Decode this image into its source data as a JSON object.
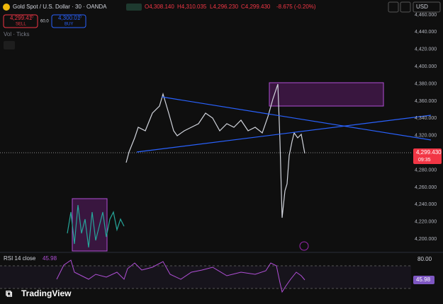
{
  "header": {
    "symbol": "Gold Spot / U.S. Dollar · 30 · OANDA",
    "open": "O4,308.140",
    "high": "H4,310.035",
    "low": "L4,296.230",
    "close": "C4,299.430",
    "change": "-8.675 (-0.20%)",
    "currency": "USD"
  },
  "trade": {
    "sell_price": "4,299.41",
    "sell_sup": "0",
    "sell": "SELL",
    "spread": "60.0",
    "buy_price": "4,300.01",
    "buy_sup": "0",
    "buy": "BUY"
  },
  "indicator": {
    "label": "Vol · Ticks"
  },
  "price_axis": {
    "labels": [
      "4,460.000",
      "4,440.000",
      "4,420.000",
      "4,400.000",
      "4,380.000",
      "4,360.000",
      "4,340.000",
      "4,320.000",
      "4,300.000",
      "4,280.000",
      "4,260.000",
      "4,240.000",
      "4,220.000",
      "4,200.000"
    ],
    "current": "4,299.430",
    "countdown": "09:35"
  },
  "rsi": {
    "label": "RSI 14 close",
    "value": "45.98",
    "axis_top": "80.00",
    "axis_value": "45.98"
  },
  "logo": {
    "text": "TradingView"
  }
}
